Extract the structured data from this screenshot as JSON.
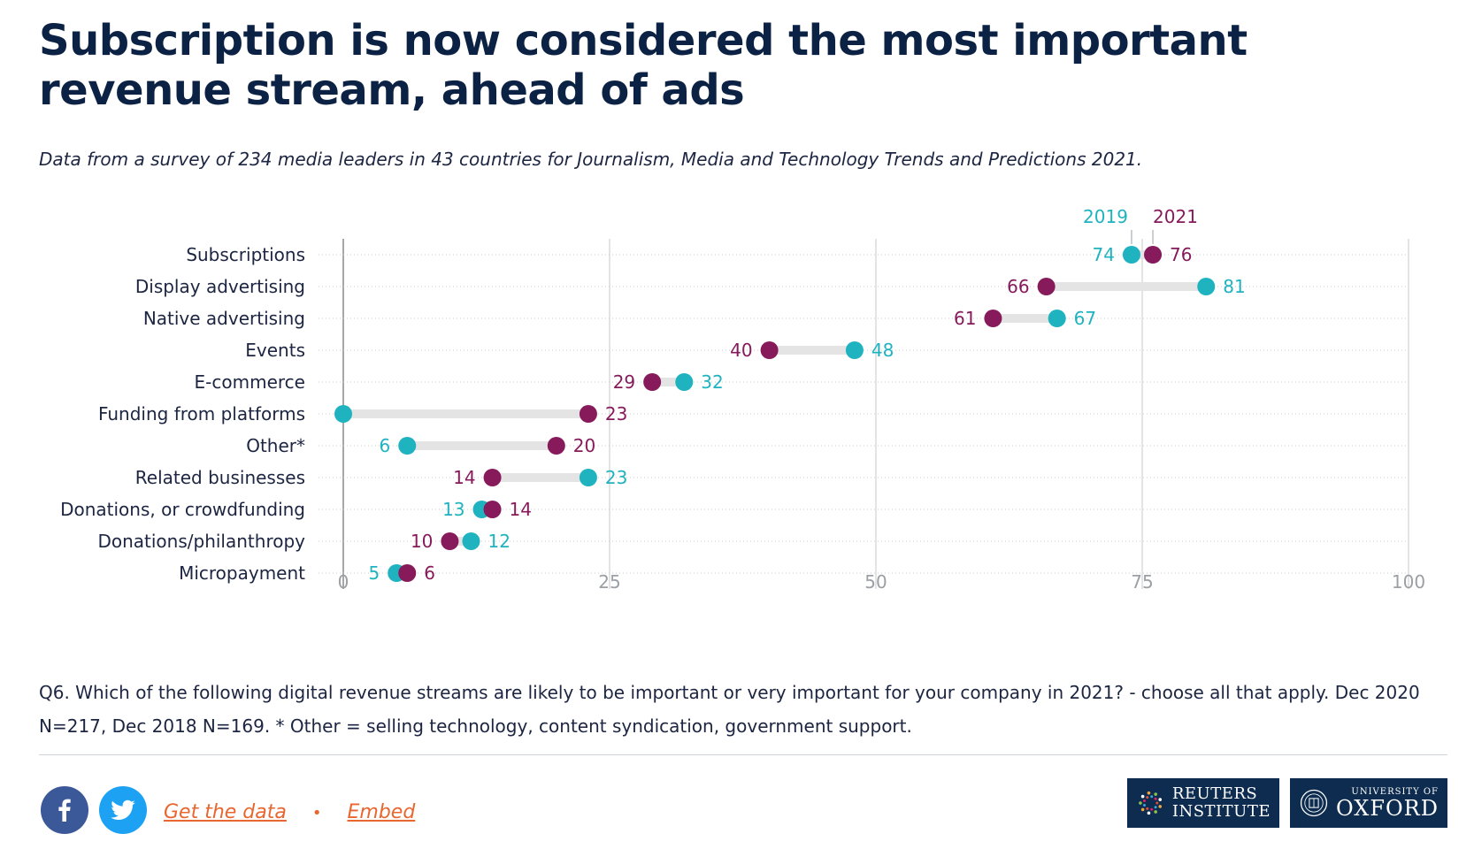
{
  "title": "Subscription is now considered the most important revenue stream, ahead of ads",
  "subtitle": "Data from a survey of 234 media leaders in 43 countries for Journalism, Media and Technology Trends and Predictions 2021.",
  "note": "Q6. Which of the following digital revenue streams are likely to be important or very important for your company in 2021? - choose all that apply.  Dec 2020 N=217, Dec 2018 N=169. * Other = selling technology, content syndication, government support.",
  "footer": {
    "get_data_label": "Get the data",
    "separator": "•",
    "embed_label": "Embed",
    "facebook_icon": "facebook-icon",
    "twitter_icon": "twitter-icon",
    "logos": {
      "reuters_line1": "REUTERS",
      "reuters_line2": "INSTITUTE",
      "oxford_line1": "UNIVERSITY OF",
      "oxford_line2": "OXFORD"
    }
  },
  "colors": {
    "series_2019": "#1fb3c0",
    "series_2021": "#871a5b",
    "title": "#0c2244",
    "link": "#e8662f",
    "logo_bg": "#0d2c4f"
  },
  "chart_data": {
    "type": "dumbbell",
    "categories": [
      "Subscriptions",
      "Display advertising",
      "Native advertising",
      "Events",
      "E-commerce",
      "Funding from platforms",
      "Other*",
      "Related businesses",
      "Donations, or crowdfunding",
      "Donations/philanthropy",
      "Micropayment"
    ],
    "series": [
      {
        "name": "2019",
        "values": [
          74,
          81,
          67,
          48,
          32,
          0,
          6,
          23,
          13,
          12,
          5
        ],
        "labels": [
          "74",
          "81",
          "67",
          "48",
          "32",
          "",
          "6",
          "23",
          "13",
          "12",
          "5"
        ]
      },
      {
        "name": "2021",
        "values": [
          76,
          66,
          61,
          40,
          29,
          23,
          20,
          14,
          14,
          10,
          6
        ],
        "labels": [
          "76",
          "66",
          "61",
          "40",
          "29",
          "23",
          "20",
          "14",
          "14",
          "10",
          "6"
        ]
      }
    ],
    "x_ticks": [
      0,
      25,
      50,
      75,
      100
    ],
    "x_tick_labels": [
      "0",
      "25",
      "50",
      "75",
      "100"
    ],
    "xlim": [
      0,
      100
    ],
    "grid": true,
    "legend": "annotations above first row"
  }
}
